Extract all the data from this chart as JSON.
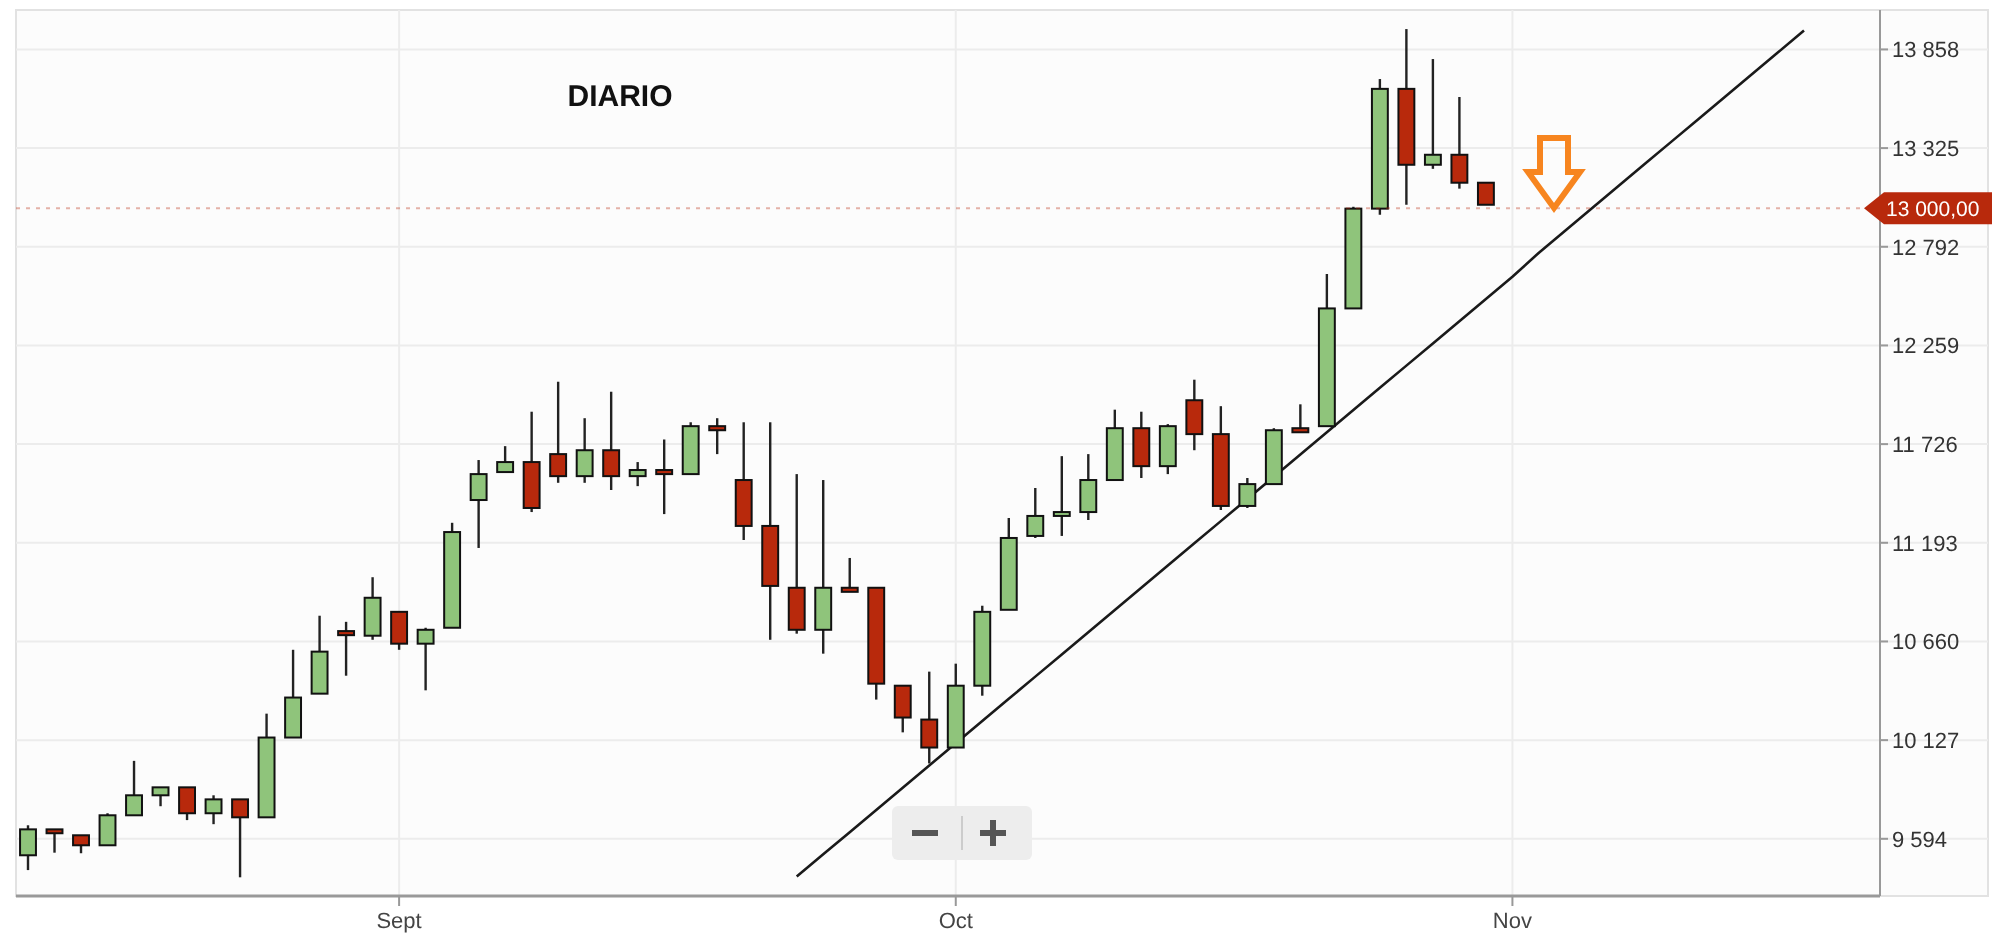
{
  "chart_data": {
    "type": "candlestick",
    "title": "DIARIO",
    "categories": [
      null,
      null,
      null,
      null,
      null,
      null,
      null,
      null,
      null,
      null,
      null,
      null,
      null,
      null,
      "Sept",
      null,
      null,
      null,
      null,
      null,
      null,
      null,
      null,
      null,
      null,
      null,
      null,
      null,
      null,
      null,
      null,
      null,
      null,
      null,
      null,
      "Oct",
      null,
      null,
      null,
      null,
      null,
      null,
      null,
      null,
      null,
      null,
      null,
      null,
      null,
      null,
      null,
      null,
      null,
      null,
      null,
      null,
      "Nov",
      null,
      null,
      null,
      null,
      null,
      null,
      null,
      null,
      null,
      null,
      null
    ],
    "ohlc": [
      [
        9505,
        9667,
        9425,
        9645
      ],
      [
        9645,
        9645,
        9519,
        9624
      ],
      [
        9613,
        9613,
        9516,
        9559
      ],
      [
        9559,
        9732,
        9559,
        9721
      ],
      [
        9721,
        10015,
        9721,
        9829
      ],
      [
        9829,
        9872,
        9770,
        9872
      ],
      [
        9872,
        9872,
        9695,
        9732
      ],
      [
        9732,
        9829,
        9673,
        9807
      ],
      [
        9807,
        9807,
        9386,
        9710
      ],
      [
        9710,
        10270,
        9710,
        10141
      ],
      [
        10141,
        10615,
        10141,
        10357
      ],
      [
        10378,
        10799,
        10378,
        10605
      ],
      [
        10716,
        10766,
        10475,
        10694
      ],
      [
        10691,
        11007,
        10669,
        10896
      ],
      [
        10820,
        10820,
        10615,
        10648
      ],
      [
        10648,
        10734,
        10396,
        10723
      ],
      [
        10734,
        11301,
        10734,
        11251
      ],
      [
        11424,
        11640,
        11165,
        11564
      ],
      [
        11575,
        11715,
        11575,
        11629
      ],
      [
        11629,
        11901,
        11359,
        11381
      ],
      [
        11672,
        12063,
        11517,
        11553
      ],
      [
        11553,
        11866,
        11517,
        11693
      ],
      [
        11693,
        12009,
        11478,
        11553
      ],
      [
        11553,
        11629,
        11499,
        11586
      ],
      [
        11586,
        11751,
        11348,
        11564
      ],
      [
        11564,
        11844,
        11564,
        11823
      ],
      [
        11823,
        11866,
        11672,
        11801
      ],
      [
        11532,
        11844,
        11208,
        11284
      ],
      [
        11284,
        11844,
        10669,
        10960
      ],
      [
        10950,
        11564,
        10702,
        10723
      ],
      [
        10723,
        11532,
        10594,
        10950
      ],
      [
        10950,
        11111,
        10928,
        10928
      ],
      [
        10950,
        10950,
        10346,
        10432
      ],
      [
        10421,
        10421,
        10169,
        10249
      ],
      [
        10238,
        10497,
        10001,
        10087
      ],
      [
        10087,
        10540,
        10087,
        10421
      ],
      [
        10421,
        10853,
        10367,
        10820
      ],
      [
        10831,
        11327,
        10831,
        11219
      ],
      [
        11230,
        11489,
        11219,
        11338
      ],
      [
        11338,
        11661,
        11230,
        11359
      ],
      [
        11359,
        11672,
        11316,
        11532
      ],
      [
        11532,
        11912,
        11532,
        11812
      ],
      [
        11812,
        11901,
        11543,
        11607
      ],
      [
        11607,
        11834,
        11564,
        11823
      ],
      [
        11963,
        12074,
        11693,
        11780
      ],
      [
        11780,
        11931,
        11370,
        11392
      ],
      [
        11392,
        11543,
        11381,
        11510
      ],
      [
        11510,
        11812,
        11510,
        11801
      ],
      [
        11812,
        11941,
        11790,
        11790
      ],
      [
        11823,
        12645,
        11823,
        12459
      ],
      [
        12459,
        13008,
        12459,
        12998
      ],
      [
        12998,
        13698,
        12965,
        13645
      ],
      [
        13645,
        13968,
        13019,
        13235
      ],
      [
        13235,
        13806,
        13213,
        13289
      ],
      [
        13289,
        13601,
        13106,
        13138
      ],
      [
        13138,
        13138,
        13019,
        13019
      ],
      null,
      null,
      null,
      null,
      null,
      null,
      null,
      null,
      null,
      null,
      null,
      null
    ],
    "colors": [
      "#8fc47b",
      "#b8290c",
      "#b8290c",
      "#8fc47b",
      "#8fc47b",
      "#8fc47b",
      "#b8290c",
      "#8fc47b",
      "#b8290c",
      "#8fc47b",
      "#8fc47b",
      "#8fc47b",
      "#b8290c",
      "#8fc47b",
      "#b8290c",
      "#8fc47b",
      "#8fc47b",
      "#8fc47b",
      "#8fc47b",
      "#b8290c",
      "#b8290c",
      "#8fc47b",
      "#b8290c",
      "#8fc47b",
      "#b8290c",
      "#8fc47b",
      "#b8290c",
      "#b8290c",
      "#b8290c",
      "#b8290c",
      "#8fc47b",
      "#b8290c",
      "#b8290c",
      "#b8290c",
      "#b8290c",
      "#8fc47b",
      "#8fc47b",
      "#8fc47b",
      "#8fc47b",
      "#8fc47b",
      "#8fc47b",
      "#8fc47b",
      "#b8290c",
      "#8fc47b",
      "#b8290c",
      "#b8290c",
      "#8fc47b",
      "#8fc47b",
      "#b8290c",
      "#8fc47b",
      "#8fc47b",
      "#8fc47b",
      "#b8290c",
      "#8fc47b",
      "#b8290c",
      "#b8290c",
      null,
      null,
      null,
      null,
      null,
      null,
      null,
      null,
      null,
      null,
      null,
      null
    ],
    "series": [
      {
        "type": "line",
        "color": "#1a1a1a",
        "values": [
          null,
          null,
          null,
          null,
          null,
          null,
          null,
          null,
          null,
          null,
          null,
          null,
          null,
          null,
          null,
          null,
          null,
          null,
          null,
          null,
          null,
          null,
          null,
          null,
          null,
          null,
          null,
          null,
          null,
          9390,
          9510,
          9630,
          9750,
          9870,
          9990,
          10110,
          10230,
          10350,
          10470,
          10590,
          10710,
          10830,
          10950,
          11070,
          11190,
          11310,
          11430,
          11550,
          11670,
          11790,
          11910,
          12030,
          12150,
          12270,
          12390,
          12510,
          12630,
          12760,
          12880,
          13000,
          13120,
          13240,
          13360,
          13480,
          13600,
          13720,
          13840,
          13960
        ]
      }
    ],
    "ylim": [
      9285,
      14071
    ],
    "yticks": [
      {
        "value": 9594,
        "label": "9 594"
      },
      {
        "value": 10127,
        "label": "10 127"
      },
      {
        "value": 10660,
        "label": "10 660"
      },
      {
        "value": 11193,
        "label": "11 193"
      },
      {
        "value": 11726,
        "label": "11 726"
      },
      {
        "value": 12259,
        "label": "12 259"
      },
      {
        "value": 12792,
        "label": "12 792"
      },
      {
        "value": 13325,
        "label": "13 325"
      },
      {
        "value": 13858,
        "label": "13 858"
      }
    ],
    "ref_lines": [
      {
        "axis": "y",
        "value": 13000,
        "label": "13 000,00",
        "color": "#b8290c"
      }
    ],
    "grid": true
  }
}
